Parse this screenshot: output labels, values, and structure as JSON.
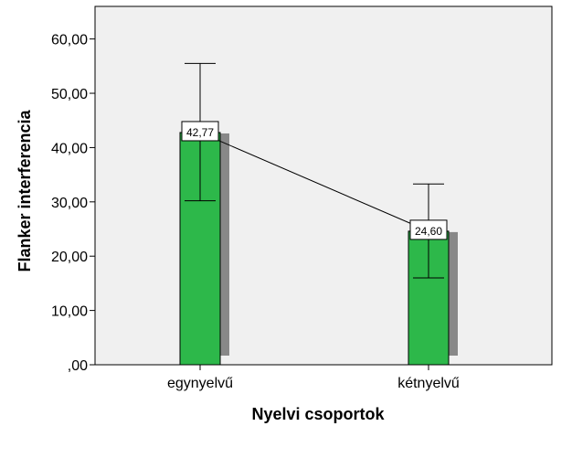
{
  "chart_data": {
    "type": "bar",
    "title": "",
    "xlabel": "Nyelvi csoportok",
    "ylabel": "Flanker interferencia",
    "categories": [
      "egynyelvű",
      "kétnyelvű"
    ],
    "values": [
      42.77,
      24.6
    ],
    "value_labels": [
      "42,77",
      "24,60"
    ],
    "error_bars": [
      {
        "low": 30.2,
        "high": 55.5
      },
      {
        "low": 16.0,
        "high": 33.3
      }
    ],
    "ylim": [
      0,
      66
    ],
    "yticks": [
      0,
      10,
      20,
      30,
      40,
      50,
      60
    ],
    "ytick_labels": [
      ",00",
      "10,00",
      "20,00",
      "30,00",
      "40,00",
      "50,00",
      "60,00"
    ],
    "connecting_line": true,
    "grid": false,
    "colors": {
      "bar": "#2db84a",
      "bar_shadow": "#888888",
      "plot_background": "#f0f0f0"
    }
  }
}
